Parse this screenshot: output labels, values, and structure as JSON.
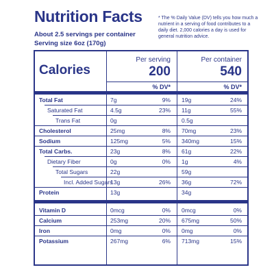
{
  "header": {
    "title": "Nutrition Facts",
    "note": "* The % Daily Value (DV) tells you how much a nutrient in a serving of food contributes to a daily diet. 2,000 calories a day is used for general nutrition advice.",
    "servings_per_container": "About 2.5 servings per container",
    "serving_size": "Serving size 6oz (170g)"
  },
  "calories": {
    "label": "Calories",
    "per_serving_label": "Per serving",
    "per_serving_value": "200",
    "per_container_label": "Per container",
    "per_container_value": "540",
    "dv_header": "% DV*"
  },
  "nutrients": [
    {
      "name": "Total Fat",
      "s_amt": "7g",
      "s_dv": "9%",
      "c_amt": "19g",
      "c_dv": "24%"
    },
    {
      "name": "Saturated Fat",
      "s_amt": "4.5g",
      "s_dv": "23%",
      "c_amt": "11g",
      "c_dv": "55%"
    },
    {
      "name": "Trans Fat",
      "s_amt": "0g",
      "s_dv": "",
      "c_amt": "0.5g",
      "c_dv": ""
    },
    {
      "name": "Cholesterol",
      "s_amt": "25mg",
      "s_dv": "8%",
      "c_amt": "70mg",
      "c_dv": "23%"
    },
    {
      "name": "Sodium",
      "s_amt": "125mg",
      "s_dv": "5%",
      "c_amt": "340mg",
      "c_dv": "15%"
    },
    {
      "name": "Total Carbs.",
      "s_amt": "23g",
      "s_dv": "8%",
      "c_amt": "61g",
      "c_dv": "22%"
    },
    {
      "name": "Dietary Fiber",
      "s_amt": "0g",
      "s_dv": "0%",
      "c_amt": "1g",
      "c_dv": "4%"
    },
    {
      "name": "Total Sugars",
      "s_amt": "22g",
      "s_dv": "",
      "c_amt": "59g",
      "c_dv": ""
    },
    {
      "name": "Incl. Added Sugars",
      "s_amt": "13g",
      "s_dv": "26%",
      "c_amt": "36g",
      "c_dv": "72%"
    },
    {
      "name": "Protein",
      "s_amt": "13g",
      "s_dv": "",
      "c_amt": "34g",
      "c_dv": ""
    },
    {
      "name": "Vitamin D",
      "s_amt": "0mcg",
      "s_dv": "0%",
      "c_amt": "0mcg",
      "c_dv": "0%"
    },
    {
      "name": "Calcium",
      "s_amt": "253mg",
      "s_dv": "20%",
      "c_amt": "675mg",
      "c_dv": "50%"
    },
    {
      "name": "Iron",
      "s_amt": "0mg",
      "s_dv": "0%",
      "c_amt": "0mg",
      "c_dv": "0%"
    },
    {
      "name": "Potassium",
      "s_amt": "267mg",
      "s_dv": "6%",
      "c_amt": "713mg",
      "c_dv": "15%"
    }
  ],
  "colors": {
    "text": "#2a3588",
    "background": "#ffffff"
  }
}
